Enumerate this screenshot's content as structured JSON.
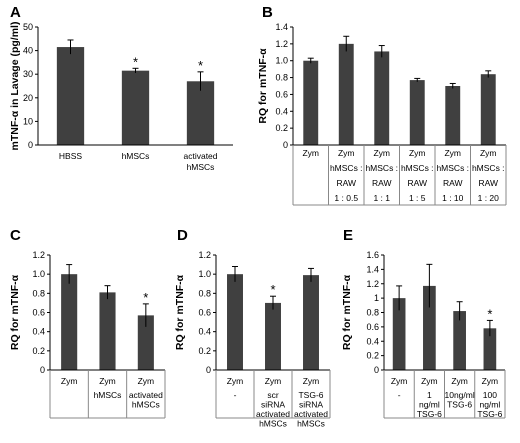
{
  "chart_data": [
    {
      "panel": "A",
      "type": "bar",
      "ylabel": "mTNF-α in Lavage (pg/ml)",
      "ylim": [
        0,
        50
      ],
      "yticks": [
        "0",
        "10",
        "20",
        "30",
        "40",
        "50"
      ],
      "categories": [
        [
          "HBSS"
        ],
        [
          "hMSCs"
        ],
        [
          "activated",
          "hMSCs"
        ]
      ],
      "values": [
        41.5,
        31.5,
        27
      ],
      "errors": [
        3,
        1,
        4
      ],
      "significance": [
        "",
        "*",
        "*"
      ],
      "bar_color": "#404040"
    },
    {
      "panel": "B",
      "type": "bar",
      "ylabel": "RQ for mTNF-α",
      "ylim": [
        0,
        1.4
      ],
      "yticks": [
        "0",
        "0.2",
        "0.4",
        "0.6",
        "0.8",
        "1.0",
        "1.2",
        "1.4"
      ],
      "table_rows": 4,
      "categories": [
        [
          "Zym",
          "",
          "",
          ""
        ],
        [
          "Zym",
          "hMSCs :",
          "RAW",
          "1 : 0.5"
        ],
        [
          "Zym",
          "hMSCs :",
          "RAW",
          "1 : 1"
        ],
        [
          "Zym",
          "hMSCs :",
          "RAW",
          "1 : 5"
        ],
        [
          "Zym",
          "hMSCs :",
          "RAW",
          "1 : 10"
        ],
        [
          "Zym",
          "hMSCs :",
          "RAW",
          "1 : 20"
        ]
      ],
      "values": [
        1.0,
        1.2,
        1.11,
        0.77,
        0.7,
        0.84
      ],
      "errors": [
        0.03,
        0.09,
        0.07,
        0.02,
        0.03,
        0.04
      ],
      "significance": [
        "",
        "",
        "",
        "",
        "",
        ""
      ],
      "bar_color": "#404040"
    },
    {
      "panel": "C",
      "type": "bar",
      "ylabel": "RQ for mTNF-α",
      "ylim": [
        0,
        1.2
      ],
      "yticks": [
        "0",
        "0.2",
        "0.4",
        "0.6",
        "0.8",
        "1.0",
        "1.2"
      ],
      "table_rows": 2,
      "categories": [
        [
          "Zym",
          ""
        ],
        [
          "Zym",
          "hMSCs"
        ],
        [
          "Zym",
          "activated hMSCs"
        ]
      ],
      "values": [
        1.0,
        0.81,
        0.57
      ],
      "errors": [
        0.1,
        0.07,
        0.12
      ],
      "significance": [
        "",
        "",
        "*"
      ],
      "bar_color": "#404040"
    },
    {
      "panel": "D",
      "type": "bar",
      "ylabel": "RQ for mTNF-α",
      "ylim": [
        0,
        1.2
      ],
      "yticks": [
        "0",
        "0.2",
        "0.4",
        "0.6",
        "0.8",
        "1.0",
        "1.2"
      ],
      "table_rows": 2,
      "categories": [
        [
          "Zym",
          "-"
        ],
        [
          "Zym",
          "scr siRNA activated hMSCs"
        ],
        [
          "Zym",
          "TSG-6 siRNA activated hMSCs"
        ]
      ],
      "values": [
        1.0,
        0.7,
        0.99
      ],
      "errors": [
        0.08,
        0.07,
        0.07
      ],
      "significance": [
        "",
        "*",
        ""
      ],
      "bar_color": "#404040"
    },
    {
      "panel": "E",
      "type": "bar",
      "ylabel": "RQ for mTNF-α",
      "ylim": [
        0,
        1.6
      ],
      "yticks": [
        "0",
        "0.2",
        "0.4",
        "0.6",
        "0.8",
        "1",
        "1.2",
        "1.4",
        "1.6"
      ],
      "table_rows": 2,
      "categories": [
        [
          "Zym",
          "-"
        ],
        [
          "Zym",
          "1 ng/ml TSG-6"
        ],
        [
          "Zym",
          "10ng/ml TSG-6"
        ],
        [
          "Zym",
          "100 ng/ml TSG-6"
        ]
      ],
      "values": [
        1.0,
        1.17,
        0.82,
        0.58
      ],
      "errors": [
        0.17,
        0.3,
        0.13,
        0.11
      ],
      "significance": [
        "",
        "",
        "",
        "*"
      ],
      "bar_color": "#404040"
    }
  ]
}
